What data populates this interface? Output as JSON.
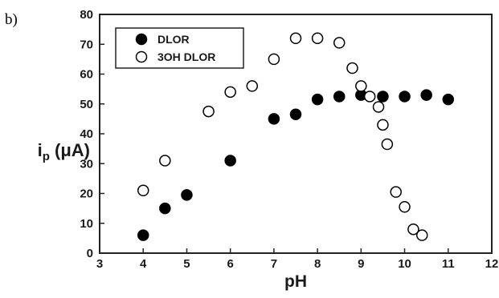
{
  "panel_label": "b)",
  "chart_data": {
    "type": "scatter",
    "xlabel": "pH",
    "ylabel": {
      "main": "i",
      "subscript": "p",
      "unit": " (μA)"
    },
    "xlim": [
      3,
      12
    ],
    "ylim": [
      0,
      80
    ],
    "xticks": [
      3,
      4,
      5,
      6,
      7,
      8,
      9,
      10,
      11,
      12
    ],
    "yticks": [
      0,
      10,
      20,
      30,
      40,
      50,
      60,
      70,
      80
    ],
    "grid": false,
    "legend_position": "top-left",
    "series": [
      {
        "name": "DLOR",
        "marker": "filled-circle",
        "color": "#000000",
        "x": [
          4,
          4.5,
          5,
          6,
          7,
          7.5,
          8,
          8.5,
          9,
          9.5,
          10,
          10.5,
          11
        ],
        "y": [
          6,
          15,
          19.5,
          31,
          45,
          46.5,
          51.5,
          52.5,
          53,
          52.5,
          52.5,
          53,
          51.5
        ]
      },
      {
        "name": "3OH DLOR",
        "marker": "open-circle",
        "color": "#000000",
        "x": [
          4,
          4.5,
          5.5,
          6,
          6.5,
          7,
          7.5,
          8,
          8.5,
          8.8,
          9,
          9.2,
          9.4,
          9.5,
          9.6,
          9.8,
          10,
          10.2,
          10.4
        ],
        "y": [
          21,
          31,
          47.5,
          54,
          56,
          65,
          72,
          72,
          70.5,
          62,
          56,
          52.5,
          49,
          43,
          36.5,
          20.5,
          15.5,
          8,
          6
        ]
      }
    ]
  }
}
